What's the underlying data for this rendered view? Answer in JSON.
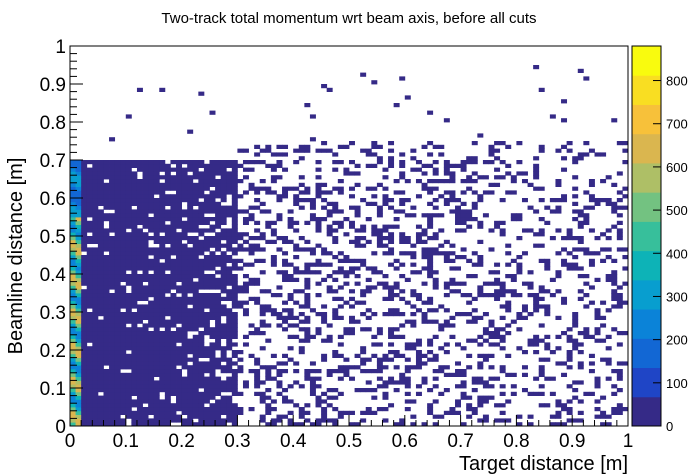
{
  "chart_data": {
    "type": "heatmap",
    "title": "Two-track total momentum wrt beam axis, before all cuts",
    "xlabel": "Target distance [m]",
    "ylabel": "Beamline distance [m]",
    "xlim": [
      0,
      1
    ],
    "ylim": [
      0,
      1
    ],
    "x_bins": 100,
    "y_bins": 100,
    "x_ticks": [
      "0",
      "0.1",
      "0.2",
      "0.3",
      "0.4",
      "0.5",
      "0.6",
      "0.7",
      "0.8",
      "0.9",
      "1"
    ],
    "y_ticks": [
      "0",
      "0.1",
      "0.2",
      "0.3",
      "0.4",
      "0.5",
      "0.6",
      "0.7",
      "0.8",
      "0.9",
      "1"
    ],
    "colorbar": {
      "zlim": [
        0,
        880
      ],
      "ticks": [
        "0",
        "100",
        "200",
        "300",
        "400",
        "500",
        "600",
        "700",
        "800"
      ],
      "palette": [
        "#352a87",
        "#1f45c6",
        "#1267d4",
        "#0b83d8",
        "#089ecf",
        "#0db3b7",
        "#37bf9b",
        "#73c281",
        "#aebf66",
        "#dab64f",
        "#f7c13a",
        "#f9de22",
        "#f9fb0e"
      ]
    },
    "regions": [
      {
        "x": [
          0.0,
          0.02
        ],
        "y": [
          0.0,
          0.55
        ],
        "count": 600
      },
      {
        "x": [
          0.0,
          0.02
        ],
        "y": [
          0.55,
          0.7
        ],
        "count": 300
      },
      {
        "x": [
          0.02,
          0.3
        ],
        "y": [
          0.0,
          0.7
        ],
        "count": 40
      },
      {
        "x": [
          0.3,
          1.0
        ],
        "y": [
          0.0,
          0.75
        ],
        "count": 2
      },
      {
        "x": [
          0.0,
          1.0
        ],
        "y": [
          0.75,
          0.95
        ],
        "count": 1
      }
    ]
  }
}
